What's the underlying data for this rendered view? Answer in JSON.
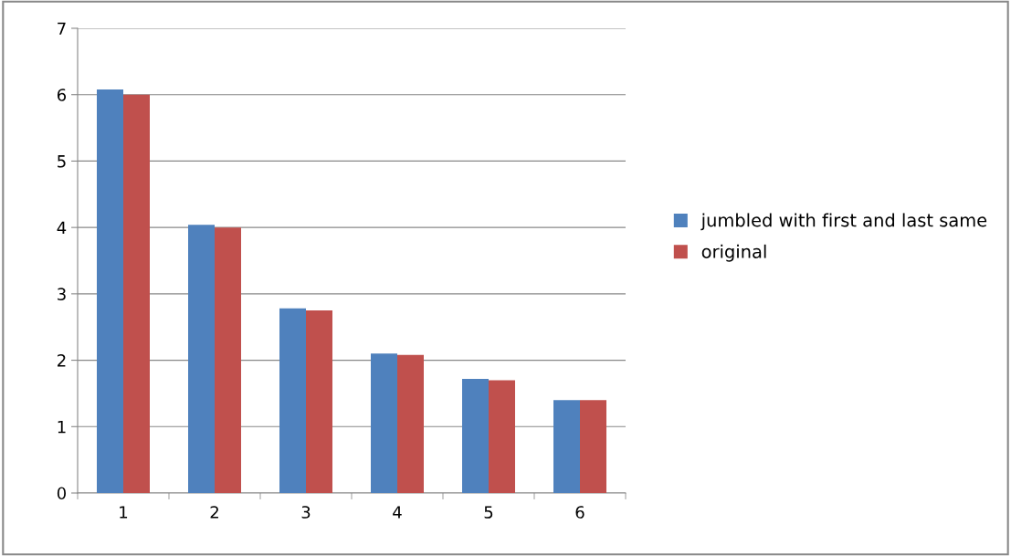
{
  "chart_data": {
    "type": "bar",
    "categories": [
      "1",
      "2",
      "3",
      "4",
      "5",
      "6"
    ],
    "series": [
      {
        "name": "jumbled with first and last same",
        "color": "#4f81bd",
        "values": [
          6.08,
          4.04,
          2.78,
          2.1,
          1.72,
          1.4
        ]
      },
      {
        "name": "original",
        "color": "#c0504d",
        "values": [
          6.0,
          4.0,
          2.75,
          2.08,
          1.7,
          1.4
        ]
      }
    ],
    "ylim": [
      0,
      7
    ],
    "yticks": [
      0,
      1,
      2,
      3,
      4,
      5,
      6,
      7
    ],
    "grid": "y",
    "legend": "right"
  }
}
